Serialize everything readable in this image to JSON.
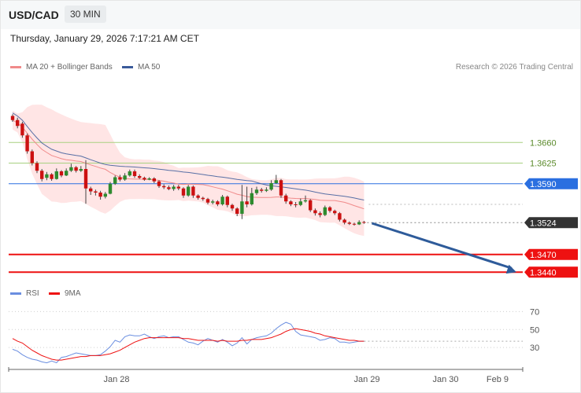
{
  "header": {
    "symbol": "USD/CAD",
    "interval": "30 MIN",
    "datetime": "Thursday, January 29, 2026 7:17:21 AM CET"
  },
  "legend": {
    "ma20_label": "MA 20 + Bollinger Bands",
    "ma50_label": "MA 50",
    "credit": "Research © 2026 Trading Central",
    "rsi_label": "RSI",
    "ma9_label": "9MA"
  },
  "colors": {
    "ma20": "#f08a8a",
    "ma50": "#3a5a9a",
    "band_fill": "#ffe0e0",
    "candle_up": "#2e8b2e",
    "candle_down": "#cc1111",
    "resistance": "#a8d080",
    "pivot": "#2a6fe0",
    "support": "#ee1111",
    "current": "#333333",
    "arrow": "#2e5b9a",
    "rsi": "#6a8ee0",
    "rsi_ma": "#ee1111"
  },
  "chart_data": [
    {
      "type": "candlestick",
      "title": "USD/CAD",
      "y_range": [
        1.3415,
        1.3775
      ],
      "x_ticks": [
        "Jan 28",
        "Jan 29",
        "Jan 30",
        "Feb 9"
      ],
      "price_levels": [
        {
          "label": "1.3660",
          "value": 1.366,
          "kind": "resistance"
        },
        {
          "label": "1.3625",
          "value": 1.3625,
          "kind": "resistance"
        },
        {
          "label": "1.3590",
          "value": 1.359,
          "kind": "pivot"
        },
        {
          "label": "1.3524",
          "value": 1.3524,
          "kind": "current"
        },
        {
          "label": "1.3470",
          "value": 1.347,
          "kind": "support"
        },
        {
          "label": "1.3440",
          "value": 1.344,
          "kind": "support"
        }
      ],
      "forecast_arrow": {
        "from": 1.3523,
        "to": 1.344
      },
      "candles": [
        [
          1.3705,
          1.3698,
          1.3708,
          1.3695
        ],
        [
          1.3698,
          1.3688,
          1.3702,
          1.3684
        ],
        [
          1.3692,
          1.3672,
          1.3695,
          1.3668
        ],
        [
          1.3672,
          1.3645,
          1.3675,
          1.3641
        ],
        [
          1.3645,
          1.3625,
          1.3648,
          1.3621
        ],
        [
          1.3625,
          1.3612,
          1.3628,
          1.3608
        ],
        [
          1.3612,
          1.3598,
          1.3615,
          1.3594
        ],
        [
          1.36,
          1.3606,
          1.361,
          1.3596
        ],
        [
          1.3606,
          1.3598,
          1.3608,
          1.3595
        ],
        [
          1.3598,
          1.3611,
          1.3616,
          1.3597
        ],
        [
          1.3611,
          1.3604,
          1.3613,
          1.3601
        ],
        [
          1.3604,
          1.3612,
          1.3616,
          1.3603
        ],
        [
          1.3612,
          1.3618,
          1.3624,
          1.361
        ],
        [
          1.3618,
          1.3612,
          1.362,
          1.3609
        ],
        [
          1.3612,
          1.3615,
          1.362,
          1.361
        ],
        [
          1.3615,
          1.3582,
          1.363,
          1.3556
        ],
        [
          1.3582,
          1.3577,
          1.3585,
          1.3571
        ],
        [
          1.3577,
          1.3575,
          1.358,
          1.357
        ],
        [
          1.3575,
          1.3568,
          1.3578,
          1.3563
        ],
        [
          1.3568,
          1.3573,
          1.3576,
          1.3565
        ],
        [
          1.3573,
          1.359,
          1.3593,
          1.3572
        ],
        [
          1.359,
          1.3601,
          1.3604,
          1.3588
        ],
        [
          1.3601,
          1.3597,
          1.3605,
          1.3594
        ],
        [
          1.3597,
          1.3604,
          1.3608,
          1.3595
        ],
        [
          1.3604,
          1.3611,
          1.3614,
          1.3602
        ],
        [
          1.3611,
          1.3603,
          1.3614,
          1.36
        ],
        [
          1.3603,
          1.36,
          1.3606,
          1.3598
        ],
        [
          1.36,
          1.3597,
          1.3602,
          1.3595
        ],
        [
          1.3597,
          1.3599,
          1.3601,
          1.3596
        ],
        [
          1.3599,
          1.3594,
          1.3601,
          1.3591
        ],
        [
          1.3594,
          1.3586,
          1.3596,
          1.3583
        ],
        [
          1.3586,
          1.3584,
          1.3589,
          1.3581
        ],
        [
          1.3584,
          1.3581,
          1.3587,
          1.3579
        ],
        [
          1.3581,
          1.3585,
          1.3588,
          1.3578
        ],
        [
          1.3585,
          1.3582,
          1.3588,
          1.3579
        ],
        [
          1.3582,
          1.357,
          1.3584,
          1.3566
        ],
        [
          1.357,
          1.3585,
          1.3588,
          1.3568
        ],
        [
          1.3585,
          1.357,
          1.3587,
          1.3566
        ],
        [
          1.357,
          1.3566,
          1.3572,
          1.3563
        ],
        [
          1.3566,
          1.3564,
          1.3568,
          1.3561
        ],
        [
          1.3564,
          1.3558,
          1.3566,
          1.3555
        ],
        [
          1.3558,
          1.356,
          1.3563,
          1.3555
        ],
        [
          1.356,
          1.3555,
          1.3562,
          1.3552
        ],
        [
          1.3555,
          1.3568,
          1.3571,
          1.3553
        ],
        [
          1.3568,
          1.3554,
          1.357,
          1.355
        ],
        [
          1.3554,
          1.3548,
          1.3556,
          1.3544
        ],
        [
          1.3548,
          1.3539,
          1.355,
          1.3535
        ],
        [
          1.3539,
          1.356,
          1.3588,
          1.353
        ],
        [
          1.356,
          1.3555,
          1.3585,
          1.355
        ],
        [
          1.3555,
          1.3574,
          1.3583,
          1.3553
        ],
        [
          1.3574,
          1.358,
          1.3585,
          1.3571
        ],
        [
          1.358,
          1.3578,
          1.3583,
          1.3575
        ],
        [
          1.3578,
          1.358,
          1.3584,
          1.3576
        ],
        [
          1.358,
          1.3591,
          1.3596,
          1.3578
        ],
        [
          1.3591,
          1.3596,
          1.3605,
          1.359
        ],
        [
          1.3596,
          1.357,
          1.3598,
          1.3566
        ],
        [
          1.357,
          1.356,
          1.3573,
          1.3556
        ],
        [
          1.356,
          1.3555,
          1.3562,
          1.3552
        ],
        [
          1.3555,
          1.3554,
          1.3559,
          1.355
        ],
        [
          1.3554,
          1.356,
          1.3565,
          1.3552
        ],
        [
          1.356,
          1.3562,
          1.357,
          1.3558
        ],
        [
          1.3562,
          1.3545,
          1.3564,
          1.3542
        ],
        [
          1.3545,
          1.354,
          1.3548,
          1.3536
        ],
        [
          1.354,
          1.3537,
          1.3543,
          1.3533
        ],
        [
          1.3537,
          1.355,
          1.3553,
          1.3535
        ],
        [
          1.355,
          1.3544,
          1.3552,
          1.3541
        ],
        [
          1.3544,
          1.354,
          1.3546,
          1.3537
        ],
        [
          1.354,
          1.3529,
          1.3542,
          1.3526
        ],
        [
          1.3529,
          1.3524,
          1.3531,
          1.3521
        ],
        [
          1.3524,
          1.3522,
          1.3526,
          1.352
        ],
        [
          1.3522,
          1.3521,
          1.3524,
          1.3519
        ],
        [
          1.3521,
          1.3525,
          1.3528,
          1.352
        ],
        [
          1.3525,
          1.3524,
          1.3527,
          1.3522
        ]
      ]
    },
    {
      "type": "line",
      "title": "RSI",
      "y_ticks": [
        70,
        50,
        30
      ],
      "y_range": [
        10,
        80
      ],
      "series": [
        {
          "name": "RSI",
          "values": [
            28,
            26,
            22,
            19,
            17,
            16,
            14,
            13,
            15,
            13,
            19,
            20,
            22,
            24,
            23,
            22,
            21,
            21,
            22,
            26,
            31,
            38,
            36,
            42,
            44,
            43,
            43,
            45,
            42,
            40,
            42,
            43,
            41,
            42,
            42,
            39,
            36,
            35,
            33,
            37,
            40,
            38,
            36,
            39,
            36,
            32,
            35,
            41,
            34,
            39,
            41,
            42,
            43,
            46,
            51,
            55,
            58,
            56,
            48,
            44,
            43,
            42,
            41,
            38,
            39,
            41,
            40,
            36,
            36,
            35,
            36,
            37,
            37
          ]
        },
        {
          "name": "9MA",
          "values": [
            40,
            37,
            35,
            31,
            27,
            24,
            21,
            19,
            17,
            16,
            16,
            17,
            18,
            19,
            20,
            20,
            21,
            21,
            21,
            22,
            23,
            25,
            27,
            30,
            33,
            36,
            38,
            40,
            41,
            41,
            41,
            41,
            41,
            41,
            41,
            40,
            40,
            39,
            38,
            38,
            38,
            38,
            37,
            38,
            37,
            37,
            37,
            38,
            38,
            39,
            39,
            39,
            40,
            41,
            43,
            45,
            48,
            50,
            51,
            50,
            49,
            48,
            46,
            45,
            43,
            42,
            41,
            40,
            39,
            38,
            38,
            37,
            37
          ]
        }
      ]
    }
  ]
}
